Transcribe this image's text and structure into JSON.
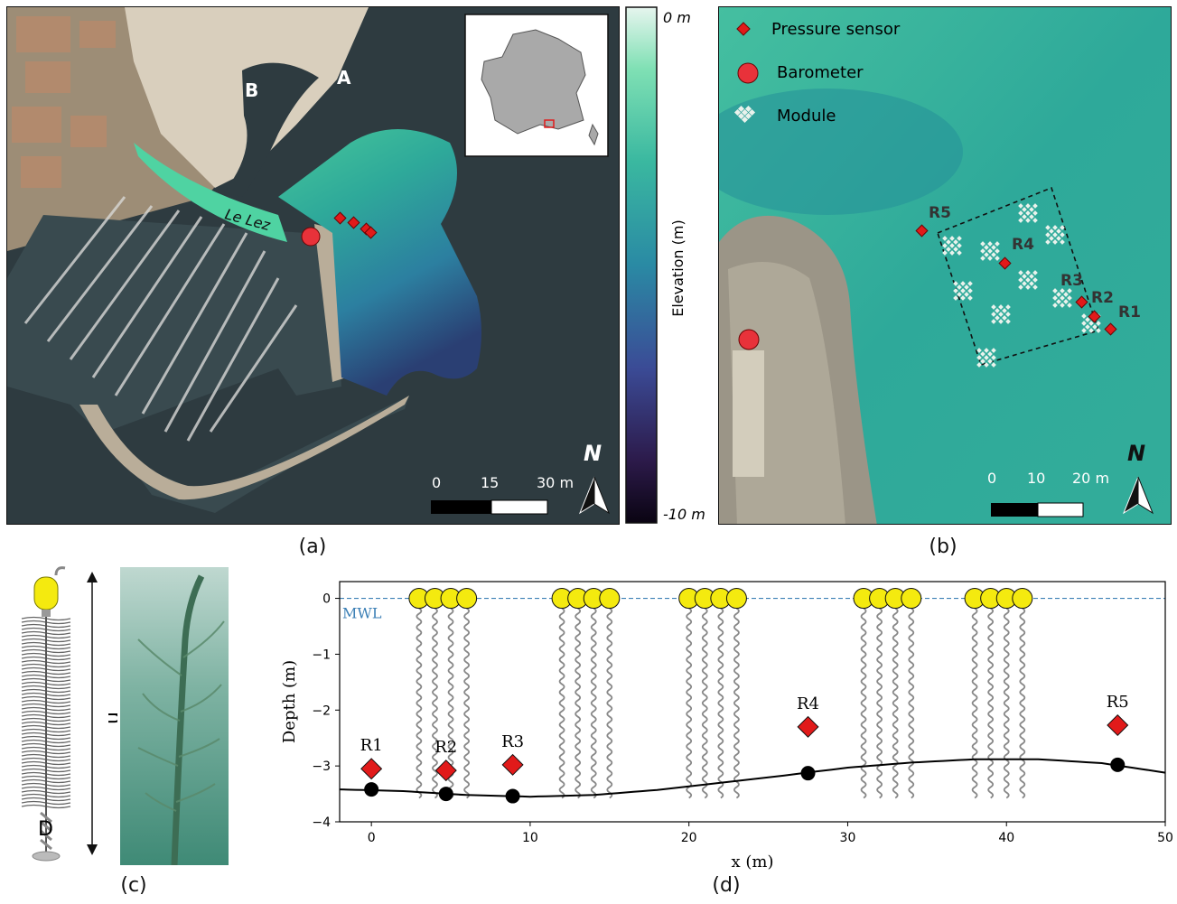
{
  "panel_a": {
    "caption": "(a)",
    "label_A": "A",
    "label_B": "B",
    "river": "Le Lez",
    "scale": {
      "t0": "0",
      "t1": "15",
      "t2": "30 m"
    },
    "north": "N"
  },
  "colorbar": {
    "top": "0 m",
    "bottom": "-10 m",
    "title": "Elevation (m)",
    "top_color": "#e6f5ee",
    "bottom_color": "#0a0412"
  },
  "panel_b": {
    "caption": "(b)",
    "legend": {
      "sensor": "Pressure sensor",
      "barometer": "Barometer",
      "module": "Module"
    },
    "sensors": [
      "R5",
      "R4",
      "R3",
      "R2",
      "R1"
    ],
    "scale": {
      "t0": "0",
      "t1": "10",
      "t2": "20 m"
    },
    "north": "N"
  },
  "panel_c": {
    "caption": "(c)",
    "h": "h",
    "d": "D"
  },
  "panel_d": {
    "caption": "(d)"
  },
  "colors": {
    "sensor": "#e11a1a",
    "float": "#f4ea0f",
    "water": "#2ea99a",
    "mwl": "#3b7fb5",
    "barometer": "#e8323a"
  },
  "chart_data": {
    "type": "scatter",
    "xlabel": "x (m)",
    "ylabel": "Depth (m)",
    "xlim": [
      -2,
      50
    ],
    "ylim": [
      -4,
      0.3
    ],
    "xticks": [
      0,
      10,
      20,
      30,
      40,
      50
    ],
    "yticks": [
      0,
      -1,
      -2,
      -3,
      -4
    ],
    "mwl_label": "MWL",
    "mwl": 0,
    "sensors": [
      {
        "name": "R1",
        "x": 0.0,
        "y": -3.05
      },
      {
        "name": "R2",
        "x": 4.7,
        "y": -3.08
      },
      {
        "name": "R3",
        "x": 8.9,
        "y": -2.98
      },
      {
        "name": "R4",
        "x": 27.5,
        "y": -2.3
      },
      {
        "name": "R5",
        "x": 47.0,
        "y": -2.27
      }
    ],
    "bed_points": [
      {
        "x": 0.0,
        "y": -3.42
      },
      {
        "x": 4.7,
        "y": -3.5
      },
      {
        "x": 8.9,
        "y": -3.54
      },
      {
        "x": 27.5,
        "y": -3.13
      },
      {
        "x": 47.0,
        "y": -2.98
      }
    ],
    "bed_profile": [
      [
        -2,
        -3.42
      ],
      [
        2,
        -3.45
      ],
      [
        6,
        -3.52
      ],
      [
        10,
        -3.55
      ],
      [
        14,
        -3.52
      ],
      [
        18,
        -3.43
      ],
      [
        22,
        -3.3
      ],
      [
        26,
        -3.17
      ],
      [
        30,
        -3.03
      ],
      [
        34,
        -2.94
      ],
      [
        38,
        -2.88
      ],
      [
        42,
        -2.88
      ],
      [
        46,
        -2.95
      ],
      [
        50,
        -3.12
      ]
    ],
    "module_groups": [
      {
        "x_start": 3,
        "count": 4
      },
      {
        "x_start": 12,
        "count": 4
      },
      {
        "x_start": 20,
        "count": 4
      },
      {
        "x_start": 31,
        "count": 4
      },
      {
        "x_start": 38,
        "count": 4
      }
    ]
  }
}
